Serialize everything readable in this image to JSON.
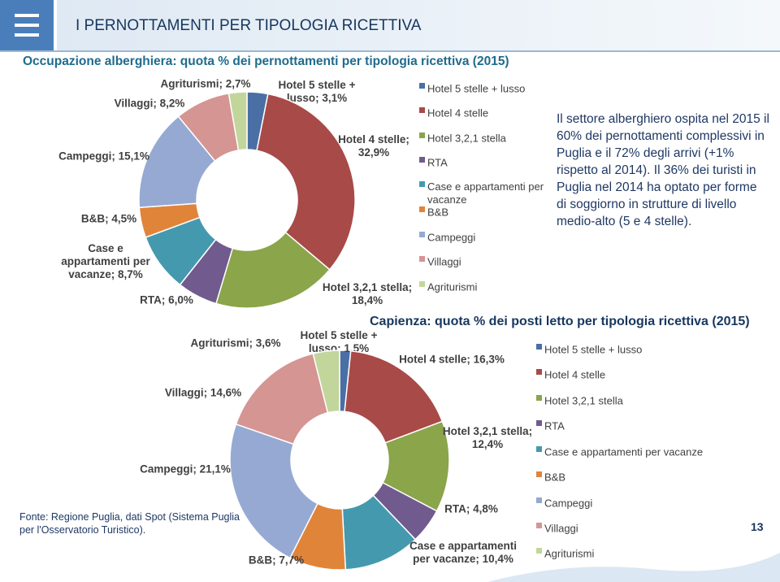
{
  "header": {
    "title": "I PERNOTTAMENTI PER TIPOLOGIA RICETTIVA"
  },
  "note": "Il settore alberghiero ospita nel 2015 il 60% dei pernottamenti complessivi in Puglia e il 72% degli arrivi (+1% rispetto al 2014). Il 36% dei turisti in Puglia nel 2014 ha optato per forme di soggiorno in strutture di livello medio-alto (5 e 4 stelle).",
  "source": "Fonte: Regione Puglia, dati Spot (Sistema Puglia per l'Osservatorio Turistico).",
  "page_number": 13,
  "chart_data": [
    {
      "type": "donut",
      "title": "Occupazione alberghiera: quota % dei pernottamenti per tipologia ricettiva (2015)",
      "categories": [
        "Hotel 5 stelle + lusso",
        "Hotel 4 stelle",
        "Hotel 3,2,1 stella",
        "RTA",
        "Case e appartamenti per vacanze",
        "B&B",
        "Campeggi",
        "Villaggi",
        "Agriturismi"
      ],
      "values": [
        3.1,
        32.9,
        18.4,
        6.0,
        8.7,
        4.5,
        15.1,
        8.2,
        2.7
      ],
      "value_labels": [
        "Hotel 5 stelle + lusso; 3,1%",
        "Hotel 4 stelle; 32,9%",
        "Hotel 3,2,1 stella; 18,4%",
        "RTA; 6,0%",
        "Case e appartamenti per vacanze; 8,7%",
        "B&B; 4,5%",
        "Campeggi; 15,1%",
        "Villaggi; 8,2%",
        "Agriturismi; 2,7%"
      ],
      "colors": [
        "#4a6fa5",
        "#a84a47",
        "#8aa54a",
        "#715a8e",
        "#4599ae",
        "#e0843a",
        "#95a9d3",
        "#d49593",
        "#c2d69c"
      ],
      "legend": "right"
    },
    {
      "type": "donut",
      "title": "Capienza: quota % dei posti letto per tipologia ricettiva (2015)",
      "categories": [
        "Hotel 5 stelle + lusso",
        "Hotel 4 stelle",
        "Hotel 3,2,1 stella",
        "RTA",
        "Case e appartamenti per vacanze",
        "B&B",
        "Campeggi",
        "Villaggi",
        "Agriturismi"
      ],
      "values": [
        1.5,
        16.3,
        12.4,
        4.8,
        10.4,
        7.7,
        21.1,
        14.6,
        3.6
      ],
      "value_labels": [
        "Hotel 5 stelle + lusso; 1,5%",
        "Hotel 4 stelle; 16,3%",
        "Hotel 3,2,1 stella; 12,4%",
        "RTA; 4,8%",
        "Case e appartamenti per vacanze; 10,4%",
        "B&B; 7,7%",
        "Campeggi; 21,1%",
        "Villaggi; 14,6%",
        "Agriturismi; 3,6%"
      ],
      "colors": [
        "#4a6fa5",
        "#a84a47",
        "#8aa54a",
        "#715a8e",
        "#4599ae",
        "#e0843a",
        "#95a9d3",
        "#d49593",
        "#c2d69c"
      ],
      "legend": "right"
    }
  ]
}
